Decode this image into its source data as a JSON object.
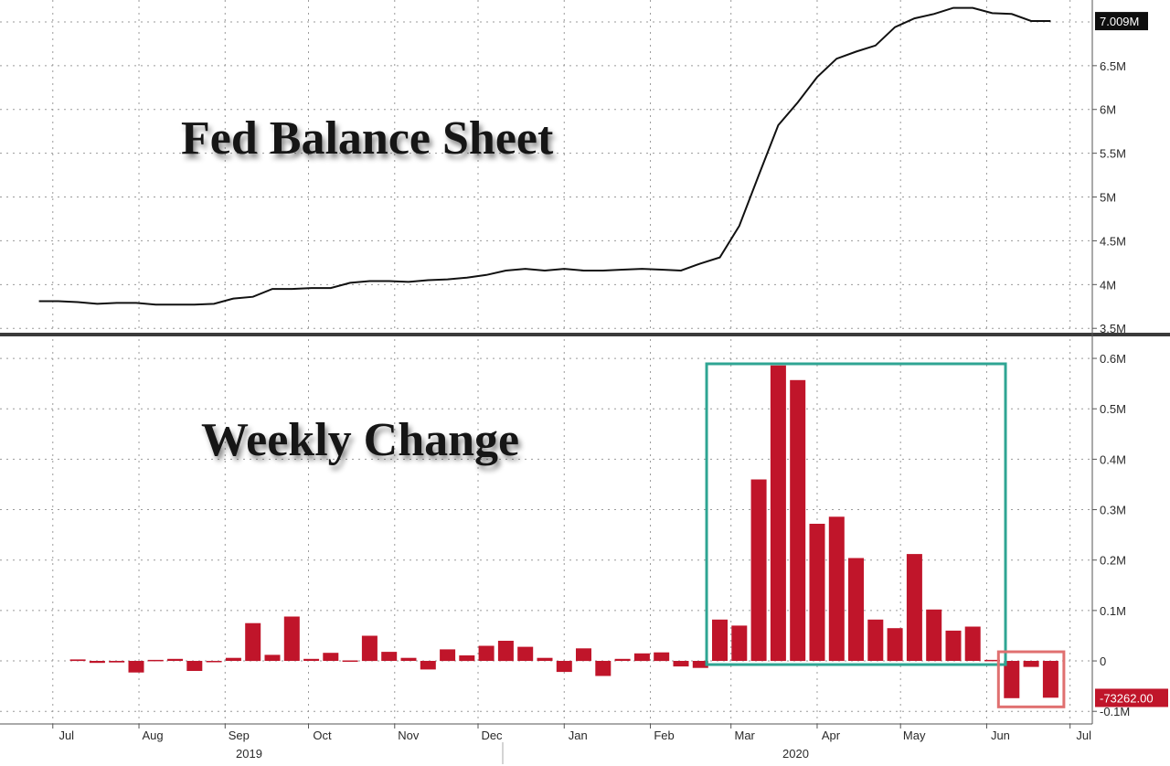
{
  "chart_data": [
    {
      "type": "line",
      "title": "Fed Balance Sheet",
      "unit_suffix": "M",
      "ylim": [
        3.45,
        7.25
      ],
      "yticks": [
        3.5,
        4,
        4.5,
        5,
        5.5,
        6,
        6.5
      ],
      "ytick_labels": [
        "3.5M",
        "4M",
        "4.5M",
        "5M",
        "5.5M",
        "6M",
        "6.5M"
      ],
      "last_value_label": "7.009M",
      "last_value": 7.009,
      "grid": true,
      "series": [
        {
          "x": [
            "2019-06-26",
            "2019-07-03",
            "2019-07-10",
            "2019-07-17",
            "2019-07-24",
            "2019-07-31",
            "2019-08-07",
            "2019-08-14",
            "2019-08-21",
            "2019-08-28",
            "2019-09-04",
            "2019-09-11",
            "2019-09-18",
            "2019-09-25",
            "2019-10-02",
            "2019-10-09",
            "2019-10-16",
            "2019-10-23",
            "2019-10-30",
            "2019-11-06",
            "2019-11-13",
            "2019-11-20",
            "2019-11-27",
            "2019-12-04",
            "2019-12-11",
            "2019-12-18",
            "2019-12-25",
            "2020-01-01",
            "2020-01-08",
            "2020-01-15",
            "2020-01-22",
            "2020-01-29",
            "2020-02-05",
            "2020-02-12",
            "2020-02-19",
            "2020-02-26",
            "2020-03-04",
            "2020-03-11",
            "2020-03-18",
            "2020-03-25",
            "2020-04-01",
            "2020-04-08",
            "2020-04-15",
            "2020-04-22",
            "2020-04-29",
            "2020-05-06",
            "2020-05-13",
            "2020-05-20",
            "2020-05-27",
            "2020-06-03",
            "2020-06-10",
            "2020-06-17",
            "2020-06-24"
          ],
          "values": [
            3.81,
            3.81,
            3.8,
            3.78,
            3.79,
            3.79,
            3.77,
            3.77,
            3.77,
            3.78,
            3.84,
            3.86,
            3.95,
            3.95,
            3.96,
            3.96,
            4.02,
            4.04,
            4.04,
            4.03,
            4.05,
            4.06,
            4.08,
            4.11,
            4.16,
            4.18,
            4.16,
            4.18,
            4.16,
            4.16,
            4.17,
            4.18,
            4.17,
            4.16,
            4.24,
            4.31,
            4.67,
            5.25,
            5.82,
            6.08,
            6.37,
            6.58,
            6.66,
            6.73,
            6.94,
            7.04,
            7.09,
            7.16,
            7.16,
            7.1,
            7.09,
            7.01,
            7.01
          ]
        }
      ]
    },
    {
      "type": "bar",
      "title": "Weekly Change",
      "ylim": [
        -0.125,
        0.64
      ],
      "yticks": [
        -0.1,
        0,
        0.1,
        0.2,
        0.3,
        0.4,
        0.5,
        0.6
      ],
      "ytick_labels": [
        "-0.1M",
        "0",
        "0.1M",
        "0.2M",
        "0.3M",
        "0.4M",
        "0.5M",
        "0.6M"
      ],
      "last_value_label": "-73262.00",
      "last_value": -0.073262,
      "grid": true,
      "values": [
        0.003,
        -0.004,
        -0.003,
        -0.023,
        0.002,
        0.004,
        -0.02,
        -0.002,
        0.006,
        0.075,
        0.012,
        0.088,
        0.004,
        0.016,
        0.001,
        0.05,
        0.018,
        0.006,
        -0.017,
        0.023,
        0.011,
        0.03,
        0.04,
        0.028,
        0.006,
        -0.022,
        0.025,
        -0.03,
        0.004,
        0.015,
        0.017,
        -0.011,
        -0.014,
        0.082,
        0.07,
        0.36,
        0.586,
        0.557,
        0.272,
        0.286,
        0.204,
        0.082,
        0.065,
        0.212,
        0.102,
        0.06,
        0.068,
        0.002,
        -0.074,
        -0.012,
        -0.073
      ]
    }
  ],
  "x_axis": {
    "month_labels": [
      "Jul",
      "Aug",
      "Sep",
      "Oct",
      "Nov",
      "Dec",
      "Jan",
      "Feb",
      "Mar",
      "Apr",
      "May",
      "Jun",
      "Jul"
    ],
    "month_starts": [
      "2019-07-01",
      "2019-08-01",
      "2019-09-01",
      "2019-10-01",
      "2019-11-01",
      "2019-12-01",
      "2020-01-01",
      "2020-02-01",
      "2020-03-01",
      "2020-04-01",
      "2020-05-01",
      "2020-06-01",
      "2020-07-01"
    ],
    "year_labels": [
      "2019",
      "2020"
    ],
    "range": [
      "2019-06-12",
      "2020-07-09"
    ]
  },
  "colors": {
    "line": "#111111",
    "bar": "#c0152a",
    "highlight_box_qe": "#2fa593",
    "highlight_box_recent": "#e07070",
    "last_value_badge": "#0e0e0e",
    "negative_badge": "#c0152a",
    "divider": "#3a3a3a"
  }
}
